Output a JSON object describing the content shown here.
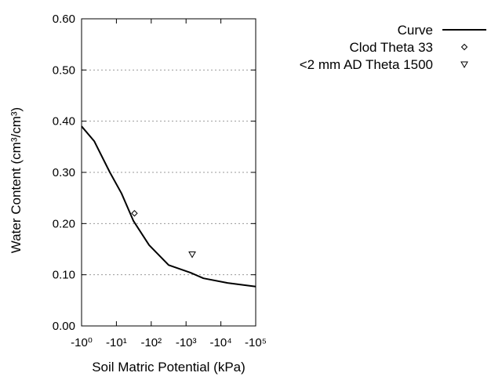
{
  "chart_data": {
    "type": "line",
    "xlabel": "Soil Matric Potential (kPa)",
    "ylabel": "Water Content (cm³/cm³)",
    "x_scale": "log",
    "xlim": [
      1,
      100000
    ],
    "ylim": [
      0,
      0.6
    ],
    "x_ticks": [
      1,
      10,
      100,
      1000,
      10000,
      100000
    ],
    "x_tick_labels": [
      "-10⁰",
      "-10¹",
      "-10²",
      "-10³",
      "-10⁴",
      "-10⁵"
    ],
    "y_ticks": [
      0,
      0.1,
      0.2,
      0.3,
      0.4,
      0.5,
      0.6
    ],
    "y_tick_labels": [
      "0.00",
      "0.10",
      "0.20",
      "0.30",
      "0.40",
      "0.50",
      "0.60"
    ],
    "grid": "horizontal dotted",
    "legend_position": "top-right",
    "series": [
      {
        "name": "Curve",
        "kind": "line",
        "color": "#000000",
        "x": [
          1,
          2.3,
          6.5,
          14,
          31,
          87,
          316,
          1350,
          3160,
          15500,
          100000
        ],
        "y": [
          0.39,
          0.361,
          0.3,
          0.259,
          0.205,
          0.158,
          0.119,
          0.104,
          0.093,
          0.084,
          0.077
        ]
      },
      {
        "name": "Clod Theta 33",
        "kind": "point",
        "marker": "diamond",
        "x": [
          33
        ],
        "y": [
          0.22
        ]
      },
      {
        "name": "<2 mm AD Theta 1500",
        "kind": "point",
        "marker": "triangle-down",
        "x": [
          1500
        ],
        "y": [
          0.14
        ]
      }
    ]
  }
}
